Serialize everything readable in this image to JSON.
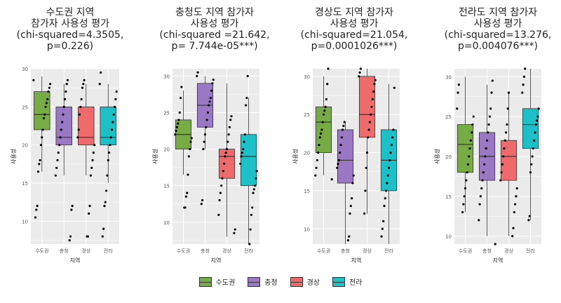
{
  "chart_data": [
    {
      "type": "box",
      "title_lines": [
        "수도권 지역",
        "참가자 사용성 평가",
        "(chi-squared=4.3505,",
        "p=0.226)"
      ],
      "xlabel": "지역",
      "ylabel": "사용성",
      "categories": [
        "수도권",
        "충청",
        "경상",
        "전라"
      ],
      "ylim": [
        7,
        30
      ],
      "yticks": [
        10,
        15,
        20,
        25,
        30
      ],
      "boxes": [
        {
          "min": 16.5,
          "q1": 22,
          "median": 24,
          "q3": 27,
          "max": 29
        },
        {
          "min": 16,
          "q1": 20,
          "median": 21,
          "q3": 25,
          "max": 28
        },
        {
          "min": 16,
          "q1": 20,
          "median": 21,
          "q3": 25,
          "max": 28
        },
        {
          "min": 15,
          "q1": 20,
          "median": 21,
          "q3": 25,
          "max": 28
        }
      ],
      "points": [
        [
          28.5,
          28,
          27.5,
          27,
          26,
          25.5,
          25,
          24,
          23.5,
          22,
          21,
          20,
          18,
          17.5,
          16.5,
          12,
          11.5,
          10.5
        ],
        [
          28.5,
          28,
          27,
          26,
          25,
          24,
          23,
          22,
          21,
          20,
          19,
          18,
          17,
          16,
          12,
          11.5,
          8,
          7.5
        ],
        [
          28.5,
          28,
          27.5,
          26,
          25,
          24,
          22,
          21,
          20,
          19,
          18,
          17,
          16,
          12,
          11,
          8,
          8
        ],
        [
          29.5,
          28,
          27,
          26,
          25,
          24,
          23,
          22,
          21,
          20,
          19,
          18,
          16,
          14,
          12.5,
          12,
          9,
          8
        ]
      ]
    },
    {
      "type": "box",
      "title_lines": [
        "충청도 지역 참가자",
        "사용성 평가",
        "(chi-squared =21.642,",
        "p= 7.744e-05***)"
      ],
      "xlabel": "지역",
      "ylabel": "사용성",
      "categories": [
        "수도권",
        "충청",
        "경상",
        "전라"
      ],
      "ylim": [
        7,
        31
      ],
      "yticks": [
        10,
        15,
        20,
        25,
        30
      ],
      "boxes": [
        {
          "min": 16.5,
          "q1": 20,
          "median": 22,
          "q3": 24,
          "max": 28
        },
        {
          "min": 20,
          "q1": 23,
          "median": 26,
          "q3": 29,
          "max": 30
        },
        {
          "min": 8,
          "q1": 16,
          "median": 19,
          "q3": 20,
          "max": 29
        },
        {
          "min": 7,
          "q1": 15,
          "median": 19,
          "q3": 22,
          "max": 27
        }
      ],
      "points": [
        [
          28.5,
          27,
          25,
          24,
          23.5,
          23,
          22.5,
          22,
          21.5,
          21,
          20,
          19,
          16.5,
          14,
          13.5,
          12,
          12
        ],
        [
          30.5,
          30,
          29.5,
          29,
          28,
          27,
          26.5,
          26,
          25,
          24,
          23,
          22,
          21,
          20,
          13,
          12.5
        ],
        [
          24.5,
          24,
          23,
          22,
          21,
          20,
          19.5,
          19,
          18,
          17,
          16,
          15,
          14,
          13,
          11,
          9,
          8.5
        ],
        [
          30,
          27,
          26,
          22,
          21,
          20,
          19.5,
          19,
          18,
          17,
          16,
          15,
          14.5,
          14,
          12,
          11,
          9,
          7
        ]
      ]
    },
    {
      "type": "box",
      "title_lines": [
        "경상도 지역 참가자",
        "사용성 평가",
        "(chi-squared=21.054,",
        "p=0.0001026***)"
      ],
      "xlabel": "지역",
      "ylabel": "사용성",
      "categories": [
        "수도권",
        "충청",
        "경상",
        "전라"
      ],
      "ylim": [
        8,
        31
      ],
      "yticks": [
        10,
        15,
        20,
        25,
        30
      ],
      "boxes": [
        {
          "min": 17,
          "q1": 20,
          "median": 24,
          "q3": 26,
          "max": 30
        },
        {
          "min": 8,
          "q1": 16,
          "median": 19,
          "q3": 23,
          "max": 24
        },
        {
          "min": 12,
          "q1": 22,
          "median": 25,
          "q3": 30,
          "max": 31
        },
        {
          "min": 8,
          "q1": 15,
          "median": 19,
          "q3": 23,
          "max": 29
        }
      ],
      "points": [
        [
          31,
          29,
          27,
          26,
          25.5,
          25,
          24,
          23,
          22.5,
          22,
          21,
          20,
          19,
          18,
          17,
          16.5
        ],
        [
          24,
          23.5,
          23,
          22,
          21,
          20,
          19,
          18.5,
          18,
          17,
          16,
          14,
          13,
          12,
          9,
          8.5
        ],
        [
          31,
          30.5,
          30,
          29.5,
          29,
          28,
          27,
          26,
          25,
          24,
          23,
          22,
          20,
          18,
          15,
          12
        ],
        [
          28.5,
          23,
          22,
          21,
          20,
          19,
          18,
          17,
          16,
          15,
          14,
          13,
          11,
          10,
          9
        ]
      ]
    },
    {
      "type": "box",
      "title_lines": [
        "전라도 지역 참가자",
        "사용성 평가",
        "(chi-squared=13.276,",
        "p=0.004076***)"
      ],
      "xlabel": "지역",
      "ylabel": "사용성",
      "categories": [
        "수도권",
        "충청",
        "경상",
        "전라"
      ],
      "ylim": [
        9,
        31
      ],
      "yticks": [
        10,
        15,
        20,
        25,
        30
      ],
      "boxes": [
        {
          "min": 13,
          "q1": 18,
          "median": 21.5,
          "q3": 24,
          "max": 30
        },
        {
          "min": 10,
          "q1": 17,
          "median": 20,
          "q3": 23,
          "max": 29
        },
        {
          "min": 10,
          "q1": 17,
          "median": 20,
          "q3": 22,
          "max": 28
        },
        {
          "min": 12,
          "q1": 21,
          "median": 24,
          "q3": 26,
          "max": 31
        }
      ],
      "points": [
        [
          29,
          28,
          26,
          25,
          24,
          23,
          22,
          21,
          20,
          19,
          18,
          17,
          16,
          15,
          14,
          13
        ],
        [
          29.5,
          28,
          26,
          25,
          24,
          23,
          22,
          21,
          20,
          19,
          18,
          17,
          16,
          15,
          14,
          12,
          9
        ],
        [
          28,
          26,
          24,
          23,
          22,
          21,
          20,
          19,
          18,
          17,
          16,
          15,
          14,
          13,
          11,
          10
        ],
        [
          31,
          30,
          29,
          28,
          26,
          25,
          24.5,
          24,
          23,
          22,
          21,
          20,
          19,
          18,
          12.5,
          12
        ]
      ]
    }
  ],
  "legend": {
    "items": [
      {
        "label": "수도권",
        "color": "#77AB43"
      },
      {
        "label": "충청",
        "color": "#9B78C4"
      },
      {
        "label": "경상",
        "color": "#EF6B6B"
      },
      {
        "label": "전라",
        "color": "#1EC0C8"
      }
    ]
  },
  "colors": {
    "panel_bg": "#EBEBEB",
    "grid": "#FFFFFF",
    "box_line": "#333333",
    "point": "#000000"
  }
}
